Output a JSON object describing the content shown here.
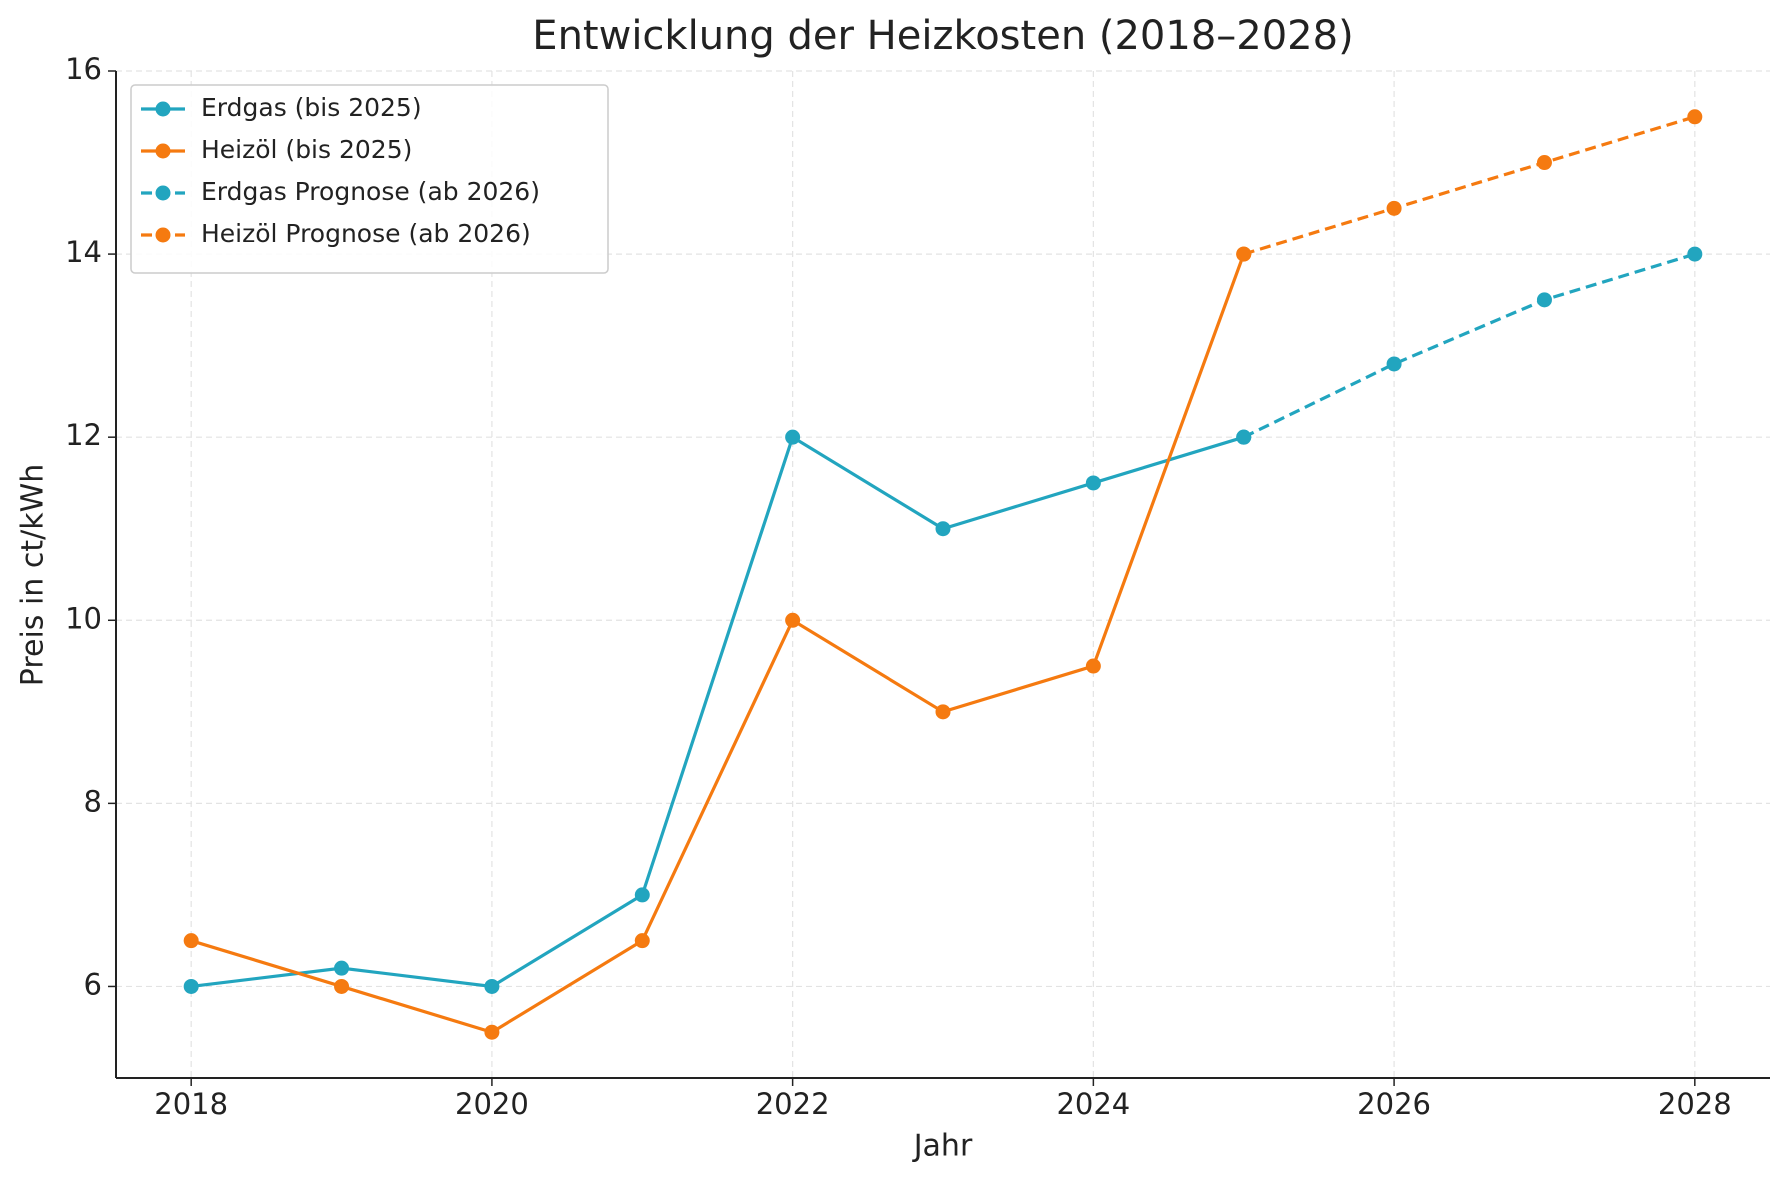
{
  "chart_data": {
    "type": "line",
    "title": "Entwicklung der Heizkosten (2018–2028)",
    "x_label": "Jahr",
    "y_label": "Preis in ct/kWh",
    "series": [
      {
        "name": "Erdgas (bis 2025)",
        "color": "#22a5bf",
        "dashed": false,
        "x": [
          2018,
          2019,
          2020,
          2021,
          2022,
          2023,
          2024,
          2025
        ],
        "values": [
          6,
          6.2,
          6,
          7,
          12,
          11,
          11.5,
          12
        ]
      },
      {
        "name": "Heizöl (bis 2025)",
        "color": "#f57a10",
        "dashed": false,
        "x": [
          2018,
          2019,
          2020,
          2021,
          2022,
          2023,
          2024,
          2025
        ],
        "values": [
          6.5,
          6,
          5.5,
          6.5,
          10,
          9,
          9.5,
          14
        ]
      },
      {
        "name": "Erdgas Prognose (ab 2026)",
        "color": "#22a5bf",
        "dashed": true,
        "x": [
          2025,
          2026,
          2027,
          2028
        ],
        "values": [
          12,
          12.8,
          13.5,
          14
        ]
      },
      {
        "name": "Heizöl Prognose (ab 2026)",
        "color": "#f57a10",
        "dashed": true,
        "x": [
          2025,
          2026,
          2027,
          2028
        ],
        "values": [
          14,
          14.5,
          15,
          15.5
        ]
      }
    ],
    "xlim": [
      2017.5,
      2028.5
    ],
    "xticks": [
      2018,
      2020,
      2022,
      2024,
      2026,
      2028
    ],
    "ylim": [
      5,
      16
    ],
    "yticks": [
      6,
      8,
      10,
      12,
      14,
      16
    ],
    "grid": true,
    "legend": "upper-left"
  }
}
